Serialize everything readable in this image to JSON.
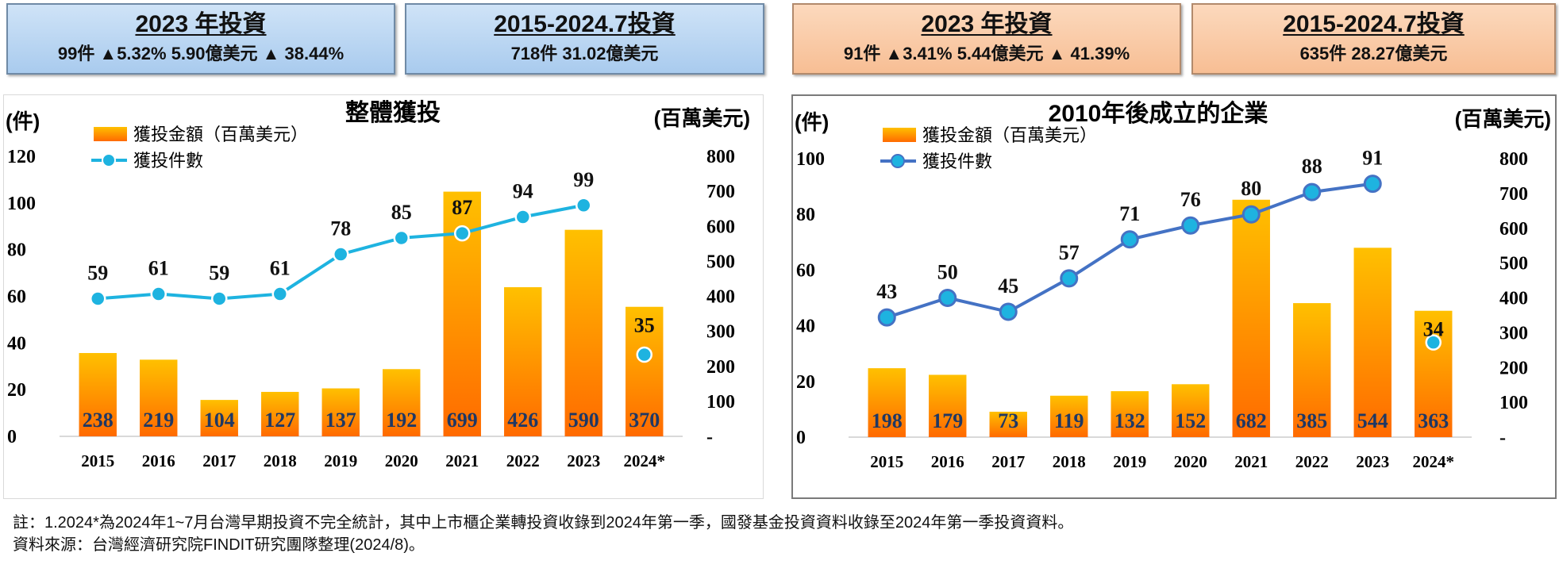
{
  "summary_boxes": [
    {
      "title": "2023 年投資",
      "line": "99件 ▲5.32%    5.90億美元 ▲ 38.44%"
    },
    {
      "title": "2015-2024.7投資",
      "line": "718件    31.02億美元"
    },
    {
      "title": "2023 年投資",
      "line": "91件 ▲3.41%    5.44億美元 ▲ 41.39%"
    },
    {
      "title": "2015-2024.7投資",
      "line": "635件    28.27億美元"
    }
  ],
  "colors": {
    "bar_top": "#ffc000",
    "bar_bottom": "#ff6a00",
    "line1": "#1eb3e0",
    "line2": "#4472c4",
    "value_text": "#1f3864"
  },
  "chart_data": [
    {
      "type": "bar",
      "title": "整體獲投",
      "left_axis_label": "(件)",
      "right_axis_label": "(百萬美元)",
      "legend": [
        "獲投金額（百萬美元）",
        "獲投件數"
      ],
      "legend_placement": "top-left",
      "categories": [
        "2015",
        "2016",
        "2017",
        "2018",
        "2019",
        "2020",
        "2021",
        "2022",
        "2023",
        "2024*"
      ],
      "series": [
        {
          "name": "獲投金額（百萬美元）",
          "type": "bar",
          "axis": "right",
          "values": [
            238,
            219,
            104,
            127,
            137,
            192,
            699,
            426,
            590,
            370
          ]
        },
        {
          "name": "獲投件數",
          "type": "line",
          "axis": "left",
          "values": [
            59,
            61,
            59,
            61,
            78,
            85,
            87,
            94,
            99,
            35
          ],
          "connected_points": 9
        }
      ],
      "left_ylim": [
        0,
        120
      ],
      "left_ticks": [
        "0",
        "20",
        "40",
        "60",
        "80",
        "100",
        "120"
      ],
      "right_ylim": [
        0,
        800
      ],
      "right_ticks": [
        "-",
        "100",
        "200",
        "300",
        "400",
        "500",
        "600",
        "700",
        "800"
      ],
      "grid": false
    },
    {
      "type": "bar",
      "title": "2010年後成立的企業",
      "left_axis_label": "(件)",
      "right_axis_label": "(百萬美元)",
      "legend": [
        "獲投金額（百萬美元）",
        "獲投件數"
      ],
      "legend_placement": "top-left",
      "categories": [
        "2015",
        "2016",
        "2017",
        "2018",
        "2019",
        "2020",
        "2021",
        "2022",
        "2023",
        "2024*"
      ],
      "series": [
        {
          "name": "獲投金額（百萬美元）",
          "type": "bar",
          "axis": "right",
          "values": [
            198,
            179,
            73,
            119,
            132,
            152,
            682,
            385,
            544,
            363
          ]
        },
        {
          "name": "獲投件數",
          "type": "line",
          "axis": "left",
          "values": [
            43,
            50,
            45,
            57,
            71,
            76,
            80,
            88,
            91,
            34
          ],
          "connected_points": 9
        }
      ],
      "left_ylim": [
        0,
        100
      ],
      "left_ticks": [
        "0",
        "20",
        "40",
        "60",
        "80",
        "100"
      ],
      "right_ylim": [
        0,
        800
      ],
      "right_ticks": [
        "-",
        "100",
        "200",
        "300",
        "400",
        "500",
        "600",
        "700",
        "800"
      ],
      "grid": false
    }
  ],
  "notes": [
    "註：1.2024*為2024年1~7月台灣早期投資不完全統計，其中上市櫃企業轉投資收錄到2024年第一季，國發基金投資資料收錄至2024年第一季投資資料。",
    "資料來源：台灣經濟研究院FINDIT研究團隊整理(2024/8)。"
  ]
}
